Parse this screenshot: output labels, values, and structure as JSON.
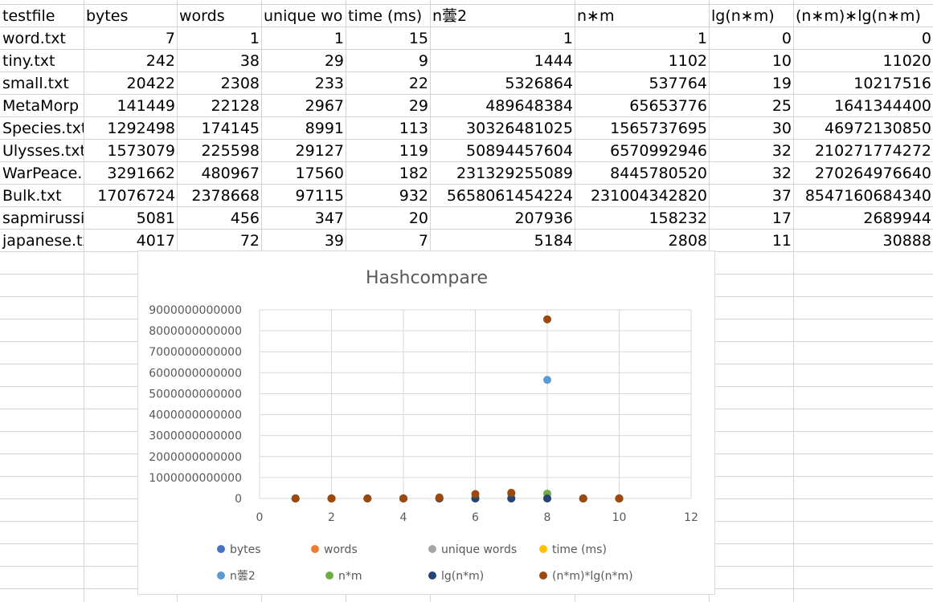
{
  "sheet": {
    "headers": [
      "testfile",
      "bytes",
      "words",
      "unique wo",
      "time (ms)",
      "n蕓2",
      "n∗m",
      "lg(n∗m)",
      "(n∗m)∗lg(n∗m)"
    ],
    "rows": [
      [
        "word.txt",
        "7",
        "1",
        "1",
        "15",
        "1",
        "1",
        "0",
        "0"
      ],
      [
        "tiny.txt",
        "242",
        "38",
        "29",
        "9",
        "1444",
        "1102",
        "10",
        "11020"
      ],
      [
        "small.txt",
        "20422",
        "2308",
        "233",
        "22",
        "5326864",
        "537764",
        "19",
        "10217516"
      ],
      [
        "MetaMorp",
        "141449",
        "22128",
        "2967",
        "29",
        "489648384",
        "65653776",
        "25",
        "1641344400"
      ],
      [
        "Species.txt",
        "1292498",
        "174145",
        "8991",
        "113",
        "30326481025",
        "1565737695",
        "30",
        "46972130850"
      ],
      [
        "Ulysses.txt",
        "1573079",
        "225598",
        "29127",
        "119",
        "50894457604",
        "6570992946",
        "32",
        "210271774272"
      ],
      [
        "WarPeace.",
        "3291662",
        "480967",
        "17560",
        "182",
        "231329255089",
        "8445780520",
        "32",
        "270264976640"
      ],
      [
        "Bulk.txt",
        "17076724",
        "2378668",
        "97115",
        "932",
        "5658061454224",
        "231004342820",
        "37",
        "8547160684340"
      ],
      [
        "sapmirussi",
        "5081",
        "456",
        "347",
        "20",
        "207936",
        "158232",
        "17",
        "2689944"
      ],
      [
        "japanese.tx",
        "4017",
        "72",
        "39",
        "7",
        "5184",
        "2808",
        "11",
        "30888"
      ]
    ]
  },
  "chart_data": {
    "type": "scatter",
    "title": "Hashcompare",
    "x": [
      1,
      2,
      3,
      4,
      5,
      6,
      7,
      8,
      9,
      10
    ],
    "xlim": [
      0,
      12
    ],
    "ylim": [
      0,
      9000000000000
    ],
    "xticks": [
      "0",
      "2",
      "4",
      "6",
      "8",
      "10",
      "12"
    ],
    "yticks": [
      "0",
      "1000000000000",
      "2000000000000",
      "3000000000000",
      "4000000000000",
      "5000000000000",
      "6000000000000",
      "7000000000000",
      "8000000000000",
      "9000000000000"
    ],
    "grid": true,
    "legend_position": "bottom",
    "series": [
      {
        "name": "bytes",
        "color": "#4472c4",
        "values": [
          7,
          242,
          20422,
          141449,
          1292498,
          1573079,
          3291662,
          17076724,
          5081,
          4017
        ]
      },
      {
        "name": "words",
        "color": "#ed7d31",
        "values": [
          1,
          38,
          2308,
          22128,
          174145,
          225598,
          480967,
          2378668,
          456,
          72
        ]
      },
      {
        "name": "unique words",
        "color": "#a5a5a5",
        "values": [
          1,
          29,
          233,
          2967,
          8991,
          29127,
          17560,
          97115,
          347,
          39
        ]
      },
      {
        "name": "time (ms)",
        "color": "#ffc000",
        "values": [
          15,
          9,
          22,
          29,
          113,
          119,
          182,
          932,
          20,
          7
        ]
      },
      {
        "name": "n蕓2",
        "color": "#5b9bd5",
        "values": [
          1,
          1444,
          5326864,
          489648384,
          30326481025,
          50894457604,
          231329255089,
          5658061454224,
          207936,
          5184
        ]
      },
      {
        "name": "n*m",
        "color": "#70ad47",
        "values": [
          1,
          1102,
          537764,
          65653776,
          1565737695,
          6570992946,
          8445780520,
          231004342820,
          158232,
          2808
        ]
      },
      {
        "name": "lg(n*m)",
        "color": "#264478",
        "values": [
          0,
          10,
          19,
          25,
          30,
          32,
          32,
          37,
          17,
          11
        ]
      },
      {
        "name": "(n*m)*lg(n*m)",
        "color": "#9e480e",
        "values": [
          0,
          11020,
          10217516,
          1641344400,
          46972130850,
          210271774272,
          270264976640,
          8547160684340,
          2689944,
          30888
        ]
      }
    ]
  }
}
